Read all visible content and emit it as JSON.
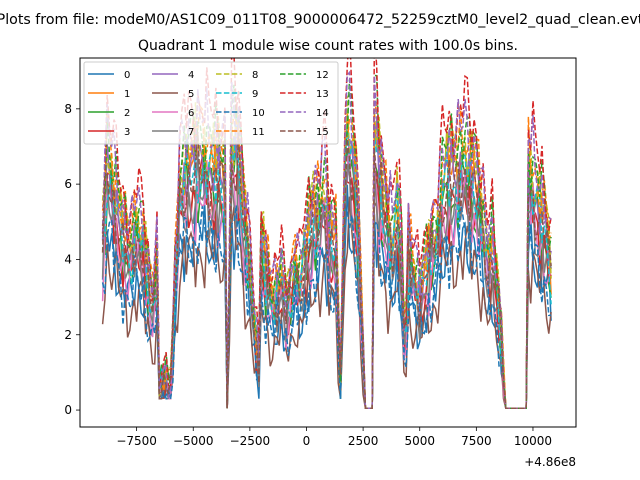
{
  "figure": {
    "suptitle": "Plots from file: modeM0/AS1C09_011T08_9000006472_52259cztM0_level2_quad_clean.evt",
    "offset_label": "+4.86e8"
  },
  "chart_data": {
    "type": "line",
    "title": "Quadrant 1 module wise count rates with 100.0s bins.",
    "xlabel": "",
    "ylabel": "",
    "xlim": [
      -10000,
      11900
    ],
    "ylim": [
      -0.45,
      9.35
    ],
    "x_ticks": [
      -7500,
      -5000,
      -2500,
      0,
      2500,
      5000,
      7500,
      10000
    ],
    "x_tick_labels": [
      "−7500",
      "−5000",
      "−2500",
      "0",
      "2500",
      "5000",
      "7500",
      "10000"
    ],
    "y_ticks": [
      0,
      2,
      4,
      6,
      8
    ],
    "y_tick_labels": [
      "0",
      "2",
      "4",
      "6",
      "8"
    ],
    "grid": false,
    "legend_position": "top-left",
    "legend_columns": 4,
    "baseline": {
      "x": [
        -9000,
        -8800,
        -8500,
        -8200,
        -8000,
        -7800,
        -7500,
        -7200,
        -7000,
        -6800,
        -6600,
        -6500,
        -6300,
        -6000,
        -5800,
        -5600,
        -5300,
        -5000,
        -4800,
        -4500,
        -4200,
        -3900,
        -3600,
        -3500,
        -3300,
        -3200,
        -3000,
        -2800,
        -2500,
        -2300,
        -2100,
        -2000,
        -1800,
        -1500,
        -1300,
        -1100,
        -900,
        -700,
        -500,
        -300,
        -100,
        100,
        300,
        500,
        800,
        1000,
        1300,
        1500,
        1700,
        1800,
        2000,
        2200,
        2400,
        2600,
        2700,
        2950,
        3000,
        3200,
        3400,
        3600,
        3800,
        4000,
        4200,
        4350,
        4500,
        4800,
        5000,
        5200,
        5500,
        5800,
        6000,
        6200,
        6500,
        6800,
        7000,
        7200,
        7500,
        7800,
        8000,
        8200,
        8500,
        8800,
        8900,
        9200,
        9500,
        9700,
        9800,
        10000,
        10200,
        10500,
        10800
      ],
      "y": [
        4.2,
        6.2,
        5.5,
        4.6,
        4.2,
        3.9,
        4.6,
        4.2,
        3.3,
        2.6,
        3.6,
        0.5,
        0.9,
        0.6,
        3.2,
        5.6,
        6.1,
        6.0,
        6.3,
        6.2,
        6.1,
        6.0,
        5.8,
        0.05,
        6.8,
        6.6,
        6.5,
        5.0,
        3.6,
        2.2,
        1.2,
        4.3,
        3.5,
        2.7,
        3.0,
        3.4,
        2.6,
        2.9,
        3.6,
        3.2,
        3.9,
        4.4,
        4.9,
        4.8,
        5.6,
        4.4,
        4.2,
        0.6,
        6.0,
        7.1,
        6.5,
        5.5,
        3.0,
        0.05,
        0.05,
        0.05,
        7.2,
        6.0,
        5.2,
        4.6,
        4.2,
        5.2,
        3.8,
        1.1,
        4.0,
        3.3,
        3.0,
        3.4,
        4.0,
        4.5,
        5.6,
        5.9,
        5.8,
        6.1,
        6.4,
        5.9,
        5.7,
        4.6,
        3.8,
        4.1,
        2.6,
        0.05,
        0.05,
        0.05,
        0.05,
        0.05,
        5.9,
        5.6,
        5.2,
        4.7,
        3.6
      ]
    },
    "series": [
      {
        "name": "0",
        "color": "#1f77b4",
        "dash": "solid",
        "scale": 0.78,
        "offset": -0.2,
        "phase": 0.3
      },
      {
        "name": "1",
        "color": "#ff7f0e",
        "dash": "solid",
        "scale": 1.07,
        "offset": 0.05,
        "phase": 1.1
      },
      {
        "name": "2",
        "color": "#2ca02c",
        "dash": "solid",
        "scale": 0.93,
        "offset": 0.1,
        "phase": 2.0
      },
      {
        "name": "3",
        "color": "#d62728",
        "dash": "solid",
        "scale": 0.95,
        "offset": -0.1,
        "phase": 2.7
      },
      {
        "name": "4",
        "color": "#9467bd",
        "dash": "solid",
        "scale": 1.02,
        "offset": 0.15,
        "phase": 3.5
      },
      {
        "name": "5",
        "color": "#8c564b",
        "dash": "solid",
        "scale": 0.72,
        "offset": -0.3,
        "phase": 4.2
      },
      {
        "name": "6",
        "color": "#e377c2",
        "dash": "solid",
        "scale": 0.88,
        "offset": 0.0,
        "phase": 5.0
      },
      {
        "name": "7",
        "color": "#7f7f7f",
        "dash": "solid",
        "scale": 0.9,
        "offset": 0.0,
        "phase": 5.7
      },
      {
        "name": "8",
        "color": "#bcbd22",
        "dash": "dashed",
        "scale": 1.12,
        "offset": 0.1,
        "phase": 0.8
      },
      {
        "name": "9",
        "color": "#17becf",
        "dash": "dashed",
        "scale": 1.02,
        "offset": -0.05,
        "phase": 1.6
      },
      {
        "name": "10",
        "color": "#1f77b4",
        "dash": "dashed",
        "scale": 0.76,
        "offset": -0.1,
        "phase": 2.3
      },
      {
        "name": "11",
        "color": "#ff7f0e",
        "dash": "dashed",
        "scale": 1.17,
        "offset": 0.05,
        "phase": 3.1
      },
      {
        "name": "12",
        "color": "#2ca02c",
        "dash": "dashed",
        "scale": 1.19,
        "offset": 0.0,
        "phase": 3.9
      },
      {
        "name": "13",
        "color": "#d62728",
        "dash": "dashed",
        "scale": 1.3,
        "offset": 0.0,
        "phase": 4.6
      },
      {
        "name": "14",
        "color": "#9467bd",
        "dash": "dashed",
        "scale": 1.22,
        "offset": 0.0,
        "phase": 5.3
      },
      {
        "name": "15",
        "color": "#8c564b",
        "dash": "dashed",
        "scale": 1.0,
        "offset": 0.0,
        "phase": 6.0
      }
    ]
  }
}
